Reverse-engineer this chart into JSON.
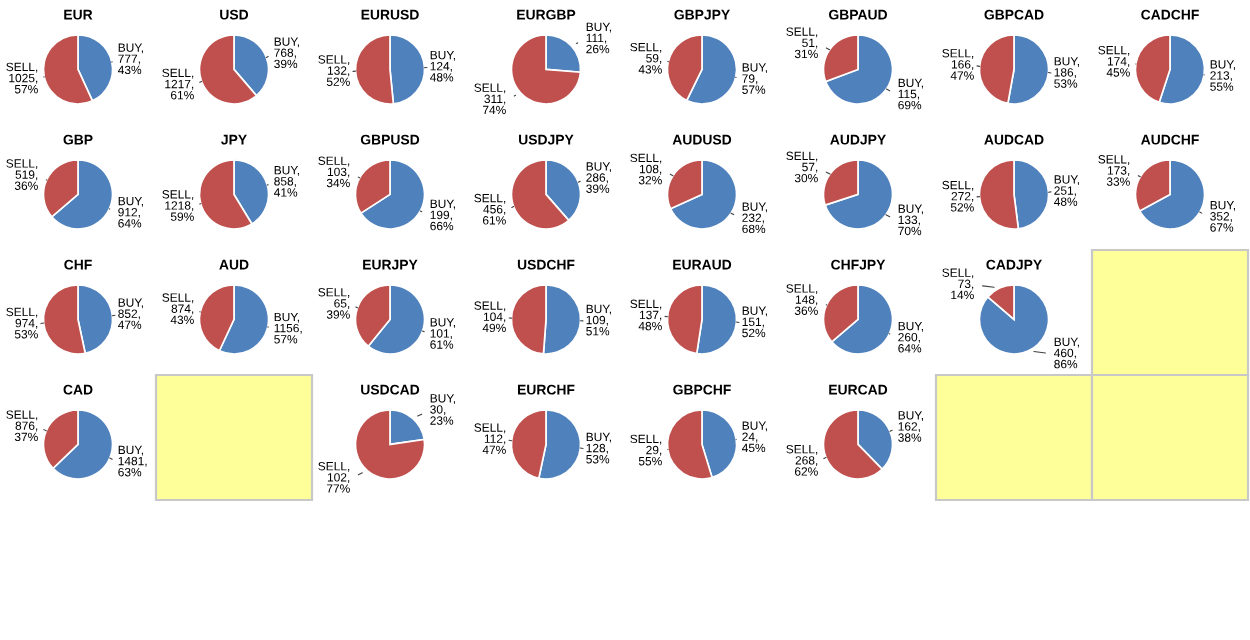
{
  "chart_data": [
    {
      "type": "pie",
      "title": "EUR",
      "categories": [
        "BUY",
        "SELL"
      ],
      "values": [
        777,
        1025
      ],
      "colors": [
        "#4f81bd",
        "#c0504d"
      ],
      "value_labels": [
        ",\n777,\n43%",
        ",\n1025,\n57%"
      ]
    },
    {
      "type": "pie",
      "title": "USD",
      "categories": [
        "BUY",
        "SELL"
      ],
      "values": [
        768,
        1217
      ],
      "colors": [
        "#4f81bd",
        "#c0504d"
      ],
      "value_labels": [
        ",\n768,\n39%",
        ",\n1217,\n61%"
      ]
    },
    {
      "type": "pie",
      "title": "EURUSD",
      "categories": [
        "BUY",
        "SELL"
      ],
      "values": [
        124,
        132
      ],
      "colors": [
        "#4f81bd",
        "#c0504d"
      ],
      "value_labels": [
        ",\n124,\n48%",
        ",\n132,\n52%"
      ]
    },
    {
      "type": "pie",
      "title": "EURGBP",
      "categories": [
        "BUY",
        "SELL"
      ],
      "values": [
        111,
        311
      ],
      "colors": [
        "#4f81bd",
        "#c0504d"
      ],
      "value_labels": [
        ",\n111,\n26%",
        ",\n311,\n74%"
      ]
    },
    {
      "type": "pie",
      "title": "GBPJPY",
      "categories": [
        "BUY",
        "SELL"
      ],
      "values": [
        79,
        59
      ],
      "colors": [
        "#4f81bd",
        "#c0504d"
      ],
      "value_labels": [
        ",\n79,\n57%",
        ",\n59,\n43%"
      ]
    },
    {
      "type": "pie",
      "title": "GBPAUD",
      "categories": [
        "BUY",
        "SELL"
      ],
      "values": [
        115,
        51
      ],
      "colors": [
        "#4f81bd",
        "#c0504d"
      ],
      "value_labels": [
        ",\n115,\n69%",
        ",\n51,\n31%"
      ]
    },
    {
      "type": "pie",
      "title": "GBPCAD",
      "categories": [
        "BUY",
        "SELL"
      ],
      "values": [
        186,
        166
      ],
      "colors": [
        "#4f81bd",
        "#c0504d"
      ],
      "value_labels": [
        ",\n186,\n53%",
        ",\n166,\n47%"
      ]
    },
    {
      "type": "pie",
      "title": "CADCHF",
      "categories": [
        "BUY",
        "SELL"
      ],
      "values": [
        213,
        174
      ],
      "colors": [
        "#4f81bd",
        "#c0504d"
      ],
      "value_labels": [
        ",\n213,\n55%",
        ",\n174,\n45%"
      ]
    },
    {
      "type": "pie",
      "title": "GBP",
      "categories": [
        "BUY",
        "SELL"
      ],
      "values": [
        912,
        519
      ],
      "colors": [
        "#4f81bd",
        "#c0504d"
      ],
      "value_labels": [
        ",\n912,\n64%",
        ",\n519,\n36%"
      ]
    },
    {
      "type": "pie",
      "title": "JPY",
      "categories": [
        "BUY",
        "SELL"
      ],
      "values": [
        858,
        1218
      ],
      "colors": [
        "#4f81bd",
        "#c0504d"
      ],
      "value_labels": [
        ",\n858,\n41%",
        ",\n1218,\n59%"
      ]
    },
    {
      "type": "pie",
      "title": "GBPUSD",
      "categories": [
        "BUY",
        "SELL"
      ],
      "values": [
        199,
        103
      ],
      "colors": [
        "#4f81bd",
        "#c0504d"
      ],
      "value_labels": [
        ",\n199,\n66%",
        ",\n103,\n34%"
      ]
    },
    {
      "type": "pie",
      "title": "USDJPY",
      "categories": [
        "BUY",
        "SELL"
      ],
      "values": [
        286,
        456
      ],
      "colors": [
        "#4f81bd",
        "#c0504d"
      ],
      "value_labels": [
        ",\n286,\n39%",
        ",\n456,\n61%"
      ]
    },
    {
      "type": "pie",
      "title": "AUDUSD",
      "categories": [
        "BUY",
        "SELL"
      ],
      "values": [
        232,
        108
      ],
      "colors": [
        "#4f81bd",
        "#c0504d"
      ],
      "value_labels": [
        ",\n232,\n68%",
        ",\n108,\n32%"
      ]
    },
    {
      "type": "pie",
      "title": "AUDJPY",
      "categories": [
        "BUY",
        "SELL"
      ],
      "values": [
        133,
        57
      ],
      "colors": [
        "#4f81bd",
        "#c0504d"
      ],
      "value_labels": [
        ",\n133,\n70%",
        ",\n57,\n30%"
      ]
    },
    {
      "type": "pie",
      "title": "AUDCAD",
      "categories": [
        "BUY",
        "SELL"
      ],
      "values": [
        251,
        272
      ],
      "colors": [
        "#4f81bd",
        "#c0504d"
      ],
      "value_labels": [
        ",\n251,\n48%",
        ",\n272,\n52%"
      ]
    },
    {
      "type": "pie",
      "title": "AUDCHF",
      "categories": [
        "BUY",
        "SELL"
      ],
      "values": [
        352,
        173
      ],
      "colors": [
        "#4f81bd",
        "#c0504d"
      ],
      "value_labels": [
        ",\n352,\n67%",
        ",\n173,\n33%"
      ]
    },
    {
      "type": "pie",
      "title": "CHF",
      "categories": [
        "BUY",
        "SELL"
      ],
      "values": [
        852,
        974
      ],
      "colors": [
        "#4f81bd",
        "#c0504d"
      ],
      "value_labels": [
        ",\n852,\n47%",
        ",\n974,\n53%"
      ]
    },
    {
      "type": "pie",
      "title": "AUD",
      "categories": [
        "BUY",
        "SELL"
      ],
      "values": [
        1156,
        874
      ],
      "colors": [
        "#4f81bd",
        "#c0504d"
      ],
      "value_labels": [
        ",\n1156,\n57%",
        ",\n874,\n43%"
      ]
    },
    {
      "type": "pie",
      "title": "EURJPY",
      "categories": [
        "BUY",
        "SELL"
      ],
      "values": [
        101,
        65
      ],
      "colors": [
        "#4f81bd",
        "#c0504d"
      ],
      "value_labels": [
        ",\n101,\n61%",
        ",\n65,\n39%"
      ]
    },
    {
      "type": "pie",
      "title": "USDCHF",
      "categories": [
        "BUY",
        "SELL"
      ],
      "values": [
        109,
        104
      ],
      "colors": [
        "#4f81bd",
        "#c0504d"
      ],
      "value_labels": [
        ",\n109,\n51%",
        ",\n104,\n49%"
      ]
    },
    {
      "type": "pie",
      "title": "EURAUD",
      "categories": [
        "BUY",
        "SELL"
      ],
      "values": [
        151,
        137
      ],
      "colors": [
        "#4f81bd",
        "#c0504d"
      ],
      "value_labels": [
        ",\n151,\n52%",
        ",\n137,\n48%"
      ]
    },
    {
      "type": "pie",
      "title": "CHFJPY",
      "categories": [
        "BUY",
        "SELL"
      ],
      "values": [
        260,
        148
      ],
      "colors": [
        "#4f81bd",
        "#c0504d"
      ],
      "value_labels": [
        ",\n260,\n64%",
        ",\n148,\n36%"
      ]
    },
    {
      "type": "pie",
      "title": "CADJPY",
      "categories": [
        "BUY",
        "SELL"
      ],
      "values": [
        460,
        73
      ],
      "colors": [
        "#4f81bd",
        "#c0504d"
      ],
      "value_labels": [
        ",\n460,\n86%",
        ",\n73,\n14%"
      ]
    },
    {
      "type": "pie",
      "title": "CAD",
      "categories": [
        "BUY",
        "SELL"
      ],
      "values": [
        1481,
        876
      ],
      "colors": [
        "#4f81bd",
        "#c0504d"
      ],
      "value_labels": [
        ",\n1481,\n63%",
        ",\n876,\n37%"
      ]
    },
    {
      "type": "pie",
      "title": "USDCAD",
      "categories": [
        "BUY",
        "SELL"
      ],
      "values": [
        30,
        102
      ],
      "colors": [
        "#4f81bd",
        "#c0504d"
      ],
      "value_labels": [
        ",\n30,\n23%",
        ",\n102,\n77%"
      ]
    },
    {
      "type": "pie",
      "title": "EURCHF",
      "categories": [
        "BUY",
        "SELL"
      ],
      "values": [
        128,
        112
      ],
      "colors": [
        "#4f81bd",
        "#c0504d"
      ],
      "value_labels": [
        ",\n128,\n53%",
        ",\n112,\n47%"
      ]
    },
    {
      "type": "pie",
      "title": "GBPCHF",
      "categories": [
        "BUY",
        "SELL"
      ],
      "values": [
        24,
        29
      ],
      "colors": [
        "#4f81bd",
        "#c0504d"
      ],
      "value_labels": [
        ",\n24,\n45%",
        ",\n29,\n55%"
      ]
    },
    {
      "type": "pie",
      "title": "EURCAD",
      "categories": [
        "BUY",
        "SELL"
      ],
      "values": [
        162,
        268
      ],
      "colors": [
        "#4f81bd",
        "#c0504d"
      ],
      "value_labels": [
        ",\n162,\n38%",
        ",\n268,\n62%"
      ]
    }
  ]
}
